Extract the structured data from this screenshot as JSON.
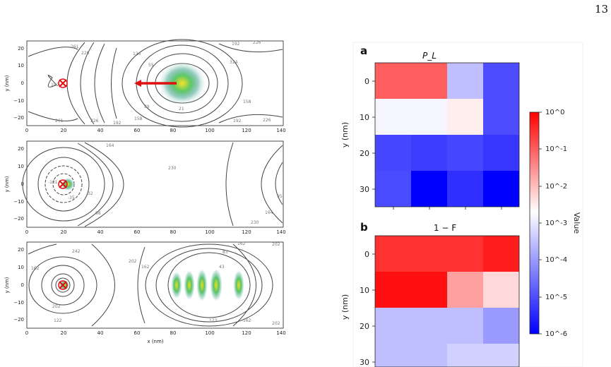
{
  "page_number": "13",
  "left_figure": {
    "panels": [
      {
        "ylabel": "y (nm)",
        "xlabel": "",
        "xticks": [
          "0",
          "20",
          "40",
          "60",
          "80",
          "100",
          "120",
          "140"
        ],
        "yticks": [
          "20",
          "10",
          "0",
          "−10",
          "−20"
        ],
        "contour_labels": [
          "261",
          "226",
          "124",
          "192",
          "226",
          "55",
          "324",
          "192",
          "89",
          "158",
          "21",
          "261",
          "226",
          "192",
          "158",
          "192",
          "226"
        ]
      },
      {
        "ylabel": "y (nm)",
        "xlabel": "",
        "xticks": [
          "0",
          "20",
          "40",
          "60",
          "80",
          "100",
          "120",
          "140"
        ],
        "yticks": [
          "20",
          "10",
          "0",
          "−10",
          "−20"
        ],
        "contour_labels": [
          "164",
          "230",
          "-101",
          "-35",
          "32",
          "98",
          "164",
          "230",
          "95"
        ]
      },
      {
        "ylabel": "y (nm)",
        "xlabel": "x (nm)",
        "xticks": [
          "0",
          "20",
          "40",
          "60",
          "80",
          "100",
          "120",
          "140"
        ],
        "yticks": [
          "20",
          "10",
          "0",
          "−10",
          "−20"
        ],
        "contour_labels": [
          "242",
          "162",
          "202",
          "202",
          "162",
          "83",
          "43",
          "123",
          "162",
          "202",
          "202",
          "122",
          "162"
        ]
      }
    ]
  },
  "right_figure": {
    "panel_a": {
      "letter": "a",
      "title": "P_L",
      "ylabel": "y (nm)",
      "yticks": [
        "0",
        "10",
        "20",
        "30"
      ]
    },
    "panel_b": {
      "letter": "b",
      "title": "1 − F",
      "ylabel": "y (nm)",
      "yticks": [
        "0",
        "10",
        "20",
        "30"
      ]
    },
    "colorbar": {
      "label": "Value",
      "ticks": [
        "10^0",
        "10^-1",
        "10^-2",
        "10^-3",
        "10^-4",
        "10^-5",
        "10^-6"
      ]
    }
  },
  "chart_data": [
    {
      "type": "heatmap",
      "title": "P_L",
      "ylabel": "y (nm)",
      "scale": "log",
      "colorbar_range": [
        1e-06,
        1
      ],
      "y": [
        0,
        10,
        20,
        30
      ],
      "values": [
        [
          0.1,
          0.1,
          0.0003,
          1e-05
        ],
        [
          0.0015,
          0.0015,
          0.003,
          1e-05
        ],
        [
          8e-06,
          6e-06,
          8e-06,
          5e-06
        ],
        [
          9e-06,
          1e-06,
          4e-06,
          1e-06
        ]
      ]
    },
    {
      "type": "heatmap",
      "title": "1 − F",
      "ylabel": "y (nm)",
      "scale": "log",
      "colorbar_range": [
        1e-06,
        1
      ],
      "y": [
        0,
        10,
        20,
        30
      ],
      "values": [
        [
          0.3,
          0.3,
          0.3,
          0.5
        ],
        [
          0.7,
          0.7,
          0.02,
          0.005
        ],
        [
          0.0003,
          0.0003,
          0.0003,
          0.0001
        ],
        [
          0.0003,
          0.0003,
          0.0005,
          0.0005
        ]
      ]
    }
  ]
}
